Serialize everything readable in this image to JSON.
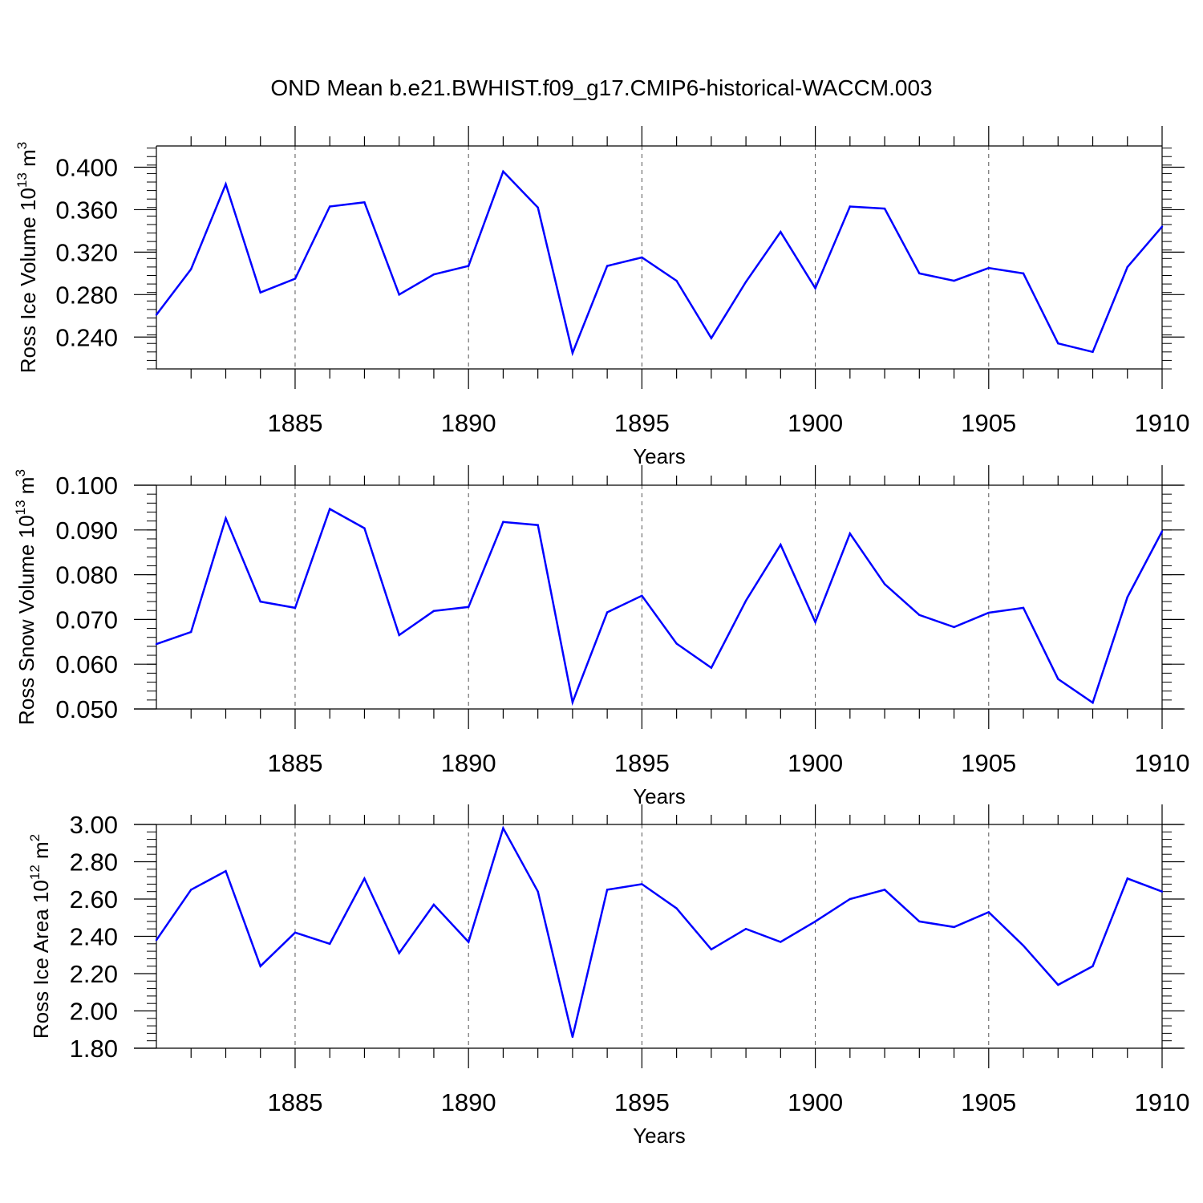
{
  "title": "OND Mean b.e21.BWHIST.f09_g17.CMIP6-historical-WACCM.003",
  "colors": {
    "line": "#0000ff",
    "axis": "#000000",
    "grid": "#555555"
  },
  "chart_data": [
    {
      "type": "line",
      "ylabel_main": "Ross Ice Volume 10",
      "ylabel_exp": "13",
      "ylabel_tail": " m",
      "ylabel_unit_exp": "3",
      "xlabel": "Years",
      "xlim": [
        1881,
        1910
      ],
      "ylim": [
        0.21,
        0.42
      ],
      "x_major_ticks": [
        1885,
        1890,
        1895,
        1900,
        1905,
        1910
      ],
      "y_major_ticks": [
        0.24,
        0.28,
        0.32,
        0.36,
        0.4
      ],
      "y_tick_labels": [
        "0.240",
        "0.280",
        "0.320",
        "0.360",
        "0.400"
      ],
      "y_minor_step": 0.008,
      "x": [
        1881,
        1882,
        1883,
        1884,
        1885,
        1886,
        1887,
        1888,
        1889,
        1890,
        1891,
        1892,
        1893,
        1894,
        1895,
        1896,
        1897,
        1898,
        1899,
        1900,
        1901,
        1902,
        1903,
        1904,
        1905,
        1906,
        1907,
        1908,
        1909,
        1910
      ],
      "values": [
        0.261,
        0.304,
        0.384,
        0.282,
        0.295,
        0.363,
        0.367,
        0.28,
        0.299,
        0.307,
        0.396,
        0.362,
        0.225,
        0.307,
        0.315,
        0.293,
        0.239,
        0.292,
        0.339,
        0.286,
        0.363,
        0.361,
        0.3,
        0.293,
        0.305,
        0.3,
        0.234,
        0.226,
        0.306,
        0.344
      ]
    },
    {
      "type": "line",
      "ylabel_main": "Ross Snow Volume 10",
      "ylabel_exp": "13",
      "ylabel_tail": " m",
      "ylabel_unit_exp": "3",
      "xlabel": "Years",
      "xlim": [
        1881,
        1910
      ],
      "ylim": [
        0.05,
        0.1
      ],
      "x_major_ticks": [
        1885,
        1890,
        1895,
        1900,
        1905,
        1910
      ],
      "y_major_ticks": [
        0.05,
        0.06,
        0.07,
        0.08,
        0.09,
        0.1
      ],
      "y_tick_labels": [
        "0.050",
        "0.060",
        "0.070",
        "0.080",
        "0.090",
        "0.100"
      ],
      "y_minor_step": 0.002,
      "x": [
        1881,
        1882,
        1883,
        1884,
        1885,
        1886,
        1887,
        1888,
        1889,
        1890,
        1891,
        1892,
        1893,
        1894,
        1895,
        1896,
        1897,
        1898,
        1899,
        1900,
        1901,
        1902,
        1903,
        1904,
        1905,
        1906,
        1907,
        1908,
        1909,
        1910
      ],
      "values": [
        0.0645,
        0.0672,
        0.0926,
        0.074,
        0.0726,
        0.0947,
        0.0904,
        0.0665,
        0.0719,
        0.0728,
        0.0918,
        0.0911,
        0.0515,
        0.0716,
        0.0753,
        0.0646,
        0.0592,
        0.0742,
        0.0867,
        0.0694,
        0.0892,
        0.0779,
        0.071,
        0.0683,
        0.0715,
        0.0726,
        0.0567,
        0.0514,
        0.075,
        0.0897
      ]
    },
    {
      "type": "line",
      "ylabel_main": "Ross Ice Area 10",
      "ylabel_exp": "12",
      "ylabel_tail": " m",
      "ylabel_unit_exp": "2",
      "xlabel": "Years",
      "xlim": [
        1881,
        1910
      ],
      "ylim": [
        1.8,
        3.0
      ],
      "x_major_ticks": [
        1885,
        1890,
        1895,
        1900,
        1905,
        1910
      ],
      "y_major_ticks": [
        1.8,
        2.0,
        2.2,
        2.4,
        2.6,
        2.8,
        3.0
      ],
      "y_tick_labels": [
        "1.80",
        "2.00",
        "2.20",
        "2.40",
        "2.60",
        "2.80",
        "3.00"
      ],
      "y_minor_step": 0.04,
      "x": [
        1881,
        1882,
        1883,
        1884,
        1885,
        1886,
        1887,
        1888,
        1889,
        1890,
        1891,
        1892,
        1893,
        1894,
        1895,
        1896,
        1897,
        1898,
        1899,
        1900,
        1901,
        1902,
        1903,
        1904,
        1905,
        1906,
        1907,
        1908,
        1909,
        1910
      ],
      "values": [
        2.38,
        2.65,
        2.75,
        2.24,
        2.42,
        2.36,
        2.71,
        2.31,
        2.57,
        2.37,
        2.98,
        2.64,
        1.86,
        2.65,
        2.68,
        2.55,
        2.33,
        2.44,
        2.37,
        2.48,
        2.6,
        2.65,
        2.48,
        2.45,
        2.53,
        2.35,
        2.14,
        2.24,
        2.71,
        2.64
      ]
    }
  ]
}
